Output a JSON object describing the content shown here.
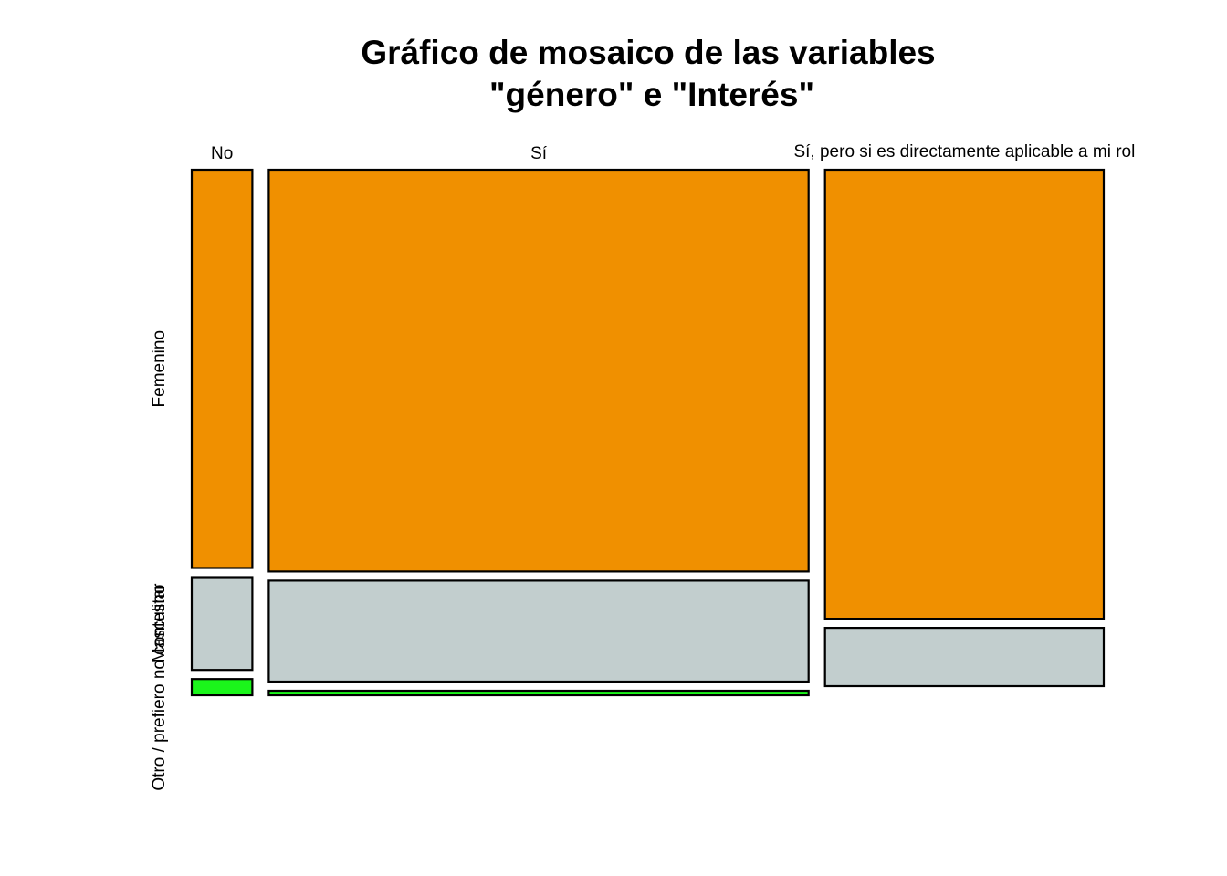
{
  "chart_data": {
    "type": "mosaic",
    "title_lines": [
      "Gráfico de mosaico de las variables",
      "\"género\" e \"Interés\""
    ],
    "columns": [
      "No",
      "Sí",
      "Sí, pero si es directamente aplicable a mi rol"
    ],
    "rows": [
      "Femenino",
      "Masculino",
      "Otro / prefiero no contestar"
    ],
    "column_proportions": [
      0.069,
      0.614,
      0.317
    ],
    "row_proportions_by_column": [
      [
        0.785,
        0.183,
        0.032
      ],
      [
        0.792,
        0.199,
        0.009
      ],
      [
        0.885,
        0.115,
        0.0
      ]
    ],
    "colors": {
      "Femenino": "#F09000",
      "Masculino": "#C2CECE",
      "Otro / prefiero no contestar": "#1BF51B"
    },
    "grid": false,
    "legend": "none"
  }
}
